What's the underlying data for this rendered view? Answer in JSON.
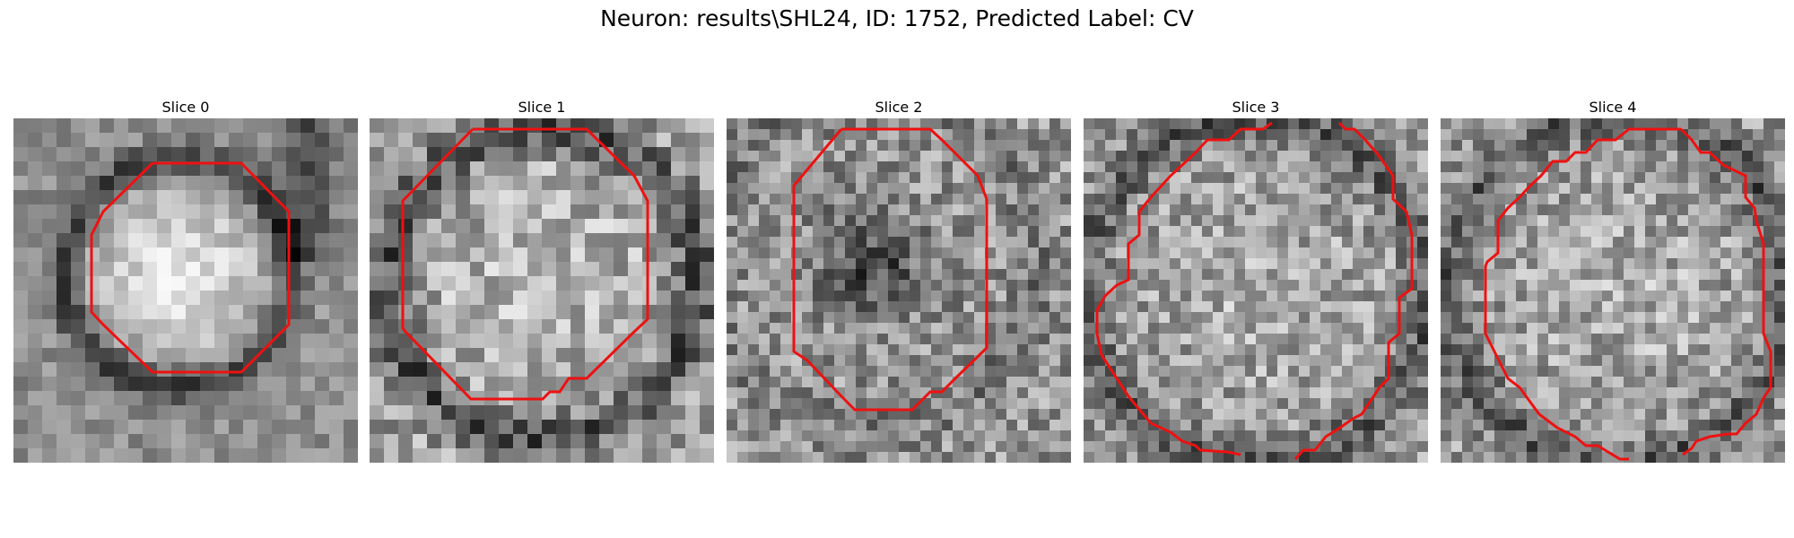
{
  "figure": {
    "suptitle": "Neuron: results\\SHL24, ID: 1752, Predicted Label: CV",
    "contour_color": "#ee1111",
    "colormap": "gray"
  },
  "slices": [
    {
      "title": "Slice 0"
    },
    {
      "title": "Slice 1"
    },
    {
      "title": "Slice 2"
    },
    {
      "title": "Slice 3"
    },
    {
      "title": "Slice 4"
    }
  ]
}
